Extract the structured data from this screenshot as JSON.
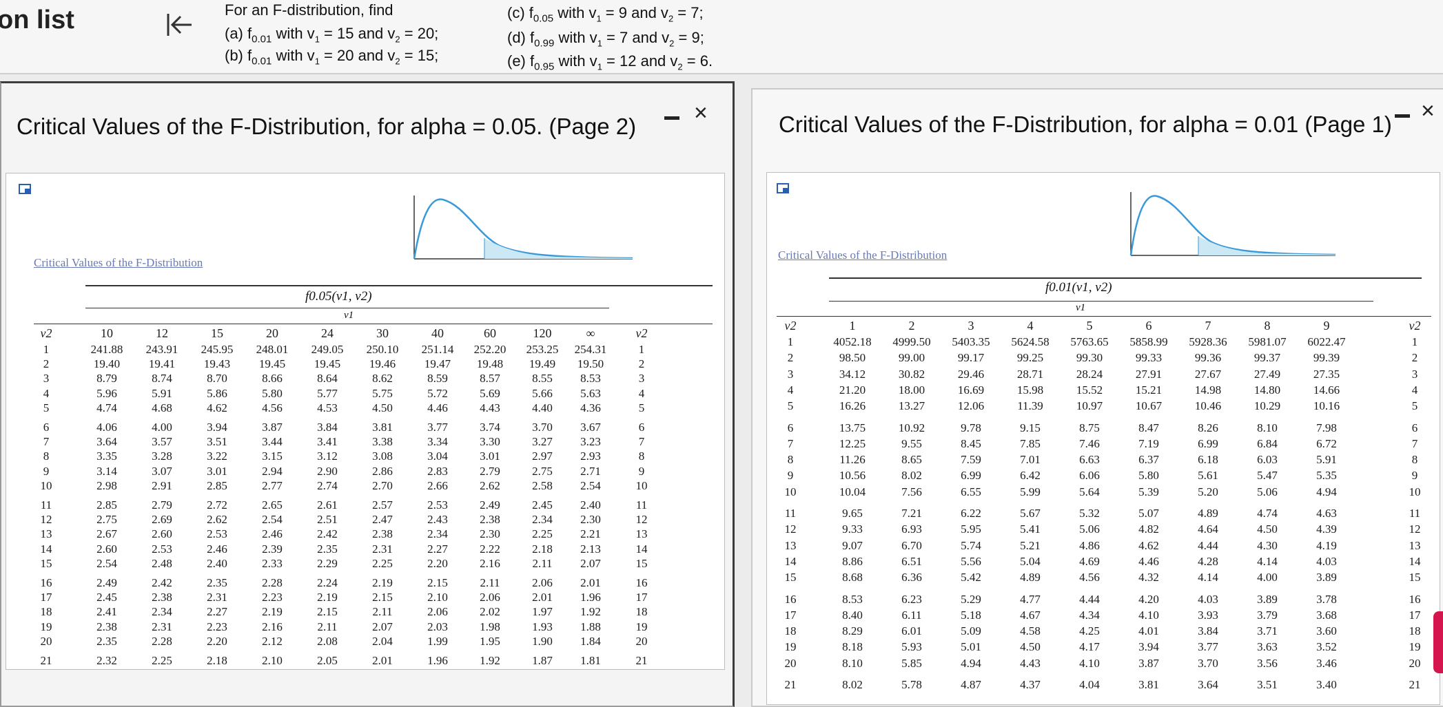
{
  "nav": {
    "title": "on list"
  },
  "question": {
    "intro": "For an F-distribution, find",
    "a": {
      "label": "(a) f",
      "sub": "0.01",
      "rest": " with v",
      "v1sub": "1",
      "v1": " = 15 and v",
      "v2sub": "2",
      "v2": " = 20;"
    },
    "b": {
      "label": "(b) f",
      "sub": "0.01",
      "rest": " with v",
      "v1sub": "1",
      "v1": " = 20 and v",
      "v2sub": "2",
      "v2": " = 15;"
    },
    "c": {
      "label": "(c) f",
      "sub": "0.05",
      "rest": " with v",
      "v1sub": "1",
      "v1": " = 9 and v",
      "v2sub": "2",
      "v2": " = 7;"
    },
    "d": {
      "label": "(d) f",
      "sub": "0.99",
      "rest": " with v",
      "v1sub": "1",
      "v1": " = 7 and v",
      "v2sub": "2",
      "v2": " = 9;"
    },
    "e": {
      "label": "(e) f",
      "sub": "0.95",
      "rest": " with v",
      "v1sub": "1",
      "v1": " = 12 and v",
      "v2sub": "2",
      "v2": " = 6."
    }
  },
  "left_window": {
    "title": "Critical Values of the F-Distribution, for alpha = 0.05. (Page 2)",
    "minimize": "-",
    "close": "×",
    "table_caption": "Critical Values of the F-Distribution",
    "table_header": "f0.05(v1, v2)",
    "v1_label": "v1",
    "v2_label": "v2",
    "columns": [
      "10",
      "12",
      "15",
      "20",
      "24",
      "30",
      "40",
      "60",
      "120",
      "∞"
    ],
    "rows": [
      [
        "1",
        "241.88",
        "243.91",
        "245.95",
        "248.01",
        "249.05",
        "250.10",
        "251.14",
        "252.20",
        "253.25",
        "254.31"
      ],
      [
        "2",
        "19.40",
        "19.41",
        "19.43",
        "19.45",
        "19.45",
        "19.46",
        "19.47",
        "19.48",
        "19.49",
        "19.50"
      ],
      [
        "3",
        "8.79",
        "8.74",
        "8.70",
        "8.66",
        "8.64",
        "8.62",
        "8.59",
        "8.57",
        "8.55",
        "8.53"
      ],
      [
        "4",
        "5.96",
        "5.91",
        "5.86",
        "5.80",
        "5.77",
        "5.75",
        "5.72",
        "5.69",
        "5.66",
        "5.63"
      ],
      [
        "5",
        "4.74",
        "4.68",
        "4.62",
        "4.56",
        "4.53",
        "4.50",
        "4.46",
        "4.43",
        "4.40",
        "4.36"
      ],
      [
        "6",
        "4.06",
        "4.00",
        "3.94",
        "3.87",
        "3.84",
        "3.81",
        "3.77",
        "3.74",
        "3.70",
        "3.67"
      ],
      [
        "7",
        "3.64",
        "3.57",
        "3.51",
        "3.44",
        "3.41",
        "3.38",
        "3.34",
        "3.30",
        "3.27",
        "3.23"
      ],
      [
        "8",
        "3.35",
        "3.28",
        "3.22",
        "3.15",
        "3.12",
        "3.08",
        "3.04",
        "3.01",
        "2.97",
        "2.93"
      ],
      [
        "9",
        "3.14",
        "3.07",
        "3.01",
        "2.94",
        "2.90",
        "2.86",
        "2.83",
        "2.79",
        "2.75",
        "2.71"
      ],
      [
        "10",
        "2.98",
        "2.91",
        "2.85",
        "2.77",
        "2.74",
        "2.70",
        "2.66",
        "2.62",
        "2.58",
        "2.54"
      ],
      [
        "11",
        "2.85",
        "2.79",
        "2.72",
        "2.65",
        "2.61",
        "2.57",
        "2.53",
        "2.49",
        "2.45",
        "2.40"
      ],
      [
        "12",
        "2.75",
        "2.69",
        "2.62",
        "2.54",
        "2.51",
        "2.47",
        "2.43",
        "2.38",
        "2.34",
        "2.30"
      ],
      [
        "13",
        "2.67",
        "2.60",
        "2.53",
        "2.46",
        "2.42",
        "2.38",
        "2.34",
        "2.30",
        "2.25",
        "2.21"
      ],
      [
        "14",
        "2.60",
        "2.53",
        "2.46",
        "2.39",
        "2.35",
        "2.31",
        "2.27",
        "2.22",
        "2.18",
        "2.13"
      ],
      [
        "15",
        "2.54",
        "2.48",
        "2.40",
        "2.33",
        "2.29",
        "2.25",
        "2.20",
        "2.16",
        "2.11",
        "2.07"
      ],
      [
        "16",
        "2.49",
        "2.42",
        "2.35",
        "2.28",
        "2.24",
        "2.19",
        "2.15",
        "2.11",
        "2.06",
        "2.01"
      ],
      [
        "17",
        "2.45",
        "2.38",
        "2.31",
        "2.23",
        "2.19",
        "2.15",
        "2.10",
        "2.06",
        "2.01",
        "1.96"
      ],
      [
        "18",
        "2.41",
        "2.34",
        "2.27",
        "2.19",
        "2.15",
        "2.11",
        "2.06",
        "2.02",
        "1.97",
        "1.92"
      ],
      [
        "19",
        "2.38",
        "2.31",
        "2.23",
        "2.16",
        "2.11",
        "2.07",
        "2.03",
        "1.98",
        "1.93",
        "1.88"
      ],
      [
        "20",
        "2.35",
        "2.28",
        "2.20",
        "2.12",
        "2.08",
        "2.04",
        "1.99",
        "1.95",
        "1.90",
        "1.84"
      ],
      [
        "21",
        "2.32",
        "2.25",
        "2.18",
        "2.10",
        "2.05",
        "2.01",
        "1.96",
        "1.92",
        "1.87",
        "1.81"
      ]
    ]
  },
  "right_window": {
    "title": "Critical Values of the F-Distribution, for alpha = 0.01 (Page 1)",
    "minimize": "-",
    "close": "×",
    "table_caption": "Critical Values of the F-Distribution",
    "table_header": "f0.01(v1, v2)",
    "v1_label": "v1",
    "v2_label": "v2",
    "columns": [
      "1",
      "2",
      "3",
      "4",
      "5",
      "6",
      "7",
      "8",
      "9"
    ],
    "rows": [
      [
        "1",
        "4052.18",
        "4999.50",
        "5403.35",
        "5624.58",
        "5763.65",
        "5858.99",
        "5928.36",
        "5981.07",
        "6022.47"
      ],
      [
        "2",
        "98.50",
        "99.00",
        "99.17",
        "99.25",
        "99.30",
        "99.33",
        "99.36",
        "99.37",
        "99.39"
      ],
      [
        "3",
        "34.12",
        "30.82",
        "29.46",
        "28.71",
        "28.24",
        "27.91",
        "27.67",
        "27.49",
        "27.35"
      ],
      [
        "4",
        "21.20",
        "18.00",
        "16.69",
        "15.98",
        "15.52",
        "15.21",
        "14.98",
        "14.80",
        "14.66"
      ],
      [
        "5",
        "16.26",
        "13.27",
        "12.06",
        "11.39",
        "10.97",
        "10.67",
        "10.46",
        "10.29",
        "10.16"
      ],
      [
        "6",
        "13.75",
        "10.92",
        "9.78",
        "9.15",
        "8.75",
        "8.47",
        "8.26",
        "8.10",
        "7.98"
      ],
      [
        "7",
        "12.25",
        "9.55",
        "8.45",
        "7.85",
        "7.46",
        "7.19",
        "6.99",
        "6.84",
        "6.72"
      ],
      [
        "8",
        "11.26",
        "8.65",
        "7.59",
        "7.01",
        "6.63",
        "6.37",
        "6.18",
        "6.03",
        "5.91"
      ],
      [
        "9",
        "10.56",
        "8.02",
        "6.99",
        "6.42",
        "6.06",
        "5.80",
        "5.61",
        "5.47",
        "5.35"
      ],
      [
        "10",
        "10.04",
        "7.56",
        "6.55",
        "5.99",
        "5.64",
        "5.39",
        "5.20",
        "5.06",
        "4.94"
      ],
      [
        "11",
        "9.65",
        "7.21",
        "6.22",
        "5.67",
        "5.32",
        "5.07",
        "4.89",
        "4.74",
        "4.63"
      ],
      [
        "12",
        "9.33",
        "6.93",
        "5.95",
        "5.41",
        "5.06",
        "4.82",
        "4.64",
        "4.50",
        "4.39"
      ],
      [
        "13",
        "9.07",
        "6.70",
        "5.74",
        "5.21",
        "4.86",
        "4.62",
        "4.44",
        "4.30",
        "4.19"
      ],
      [
        "14",
        "8.86",
        "6.51",
        "5.56",
        "5.04",
        "4.69",
        "4.46",
        "4.28",
        "4.14",
        "4.03"
      ],
      [
        "15",
        "8.68",
        "6.36",
        "5.42",
        "4.89",
        "4.56",
        "4.32",
        "4.14",
        "4.00",
        "3.89"
      ],
      [
        "16",
        "8.53",
        "6.23",
        "5.29",
        "4.77",
        "4.44",
        "4.20",
        "4.03",
        "3.89",
        "3.78"
      ],
      [
        "17",
        "8.40",
        "6.11",
        "5.18",
        "4.67",
        "4.34",
        "4.10",
        "3.93",
        "3.79",
        "3.68"
      ],
      [
        "18",
        "8.29",
        "6.01",
        "5.09",
        "4.58",
        "4.25",
        "4.01",
        "3.84",
        "3.71",
        "3.60"
      ],
      [
        "19",
        "8.18",
        "5.93",
        "5.01",
        "4.50",
        "4.17",
        "3.94",
        "3.77",
        "3.63",
        "3.52"
      ],
      [
        "20",
        "8.10",
        "5.85",
        "4.94",
        "4.43",
        "4.10",
        "3.87",
        "3.70",
        "3.56",
        "3.46"
      ],
      [
        "21",
        "8.02",
        "5.78",
        "4.87",
        "4.37",
        "4.04",
        "3.81",
        "3.64",
        "3.51",
        "3.40"
      ]
    ]
  },
  "icons": [
    "collapse-left-icon",
    "panel-toggle-icon",
    "close-icon",
    "minimize-icon"
  ]
}
